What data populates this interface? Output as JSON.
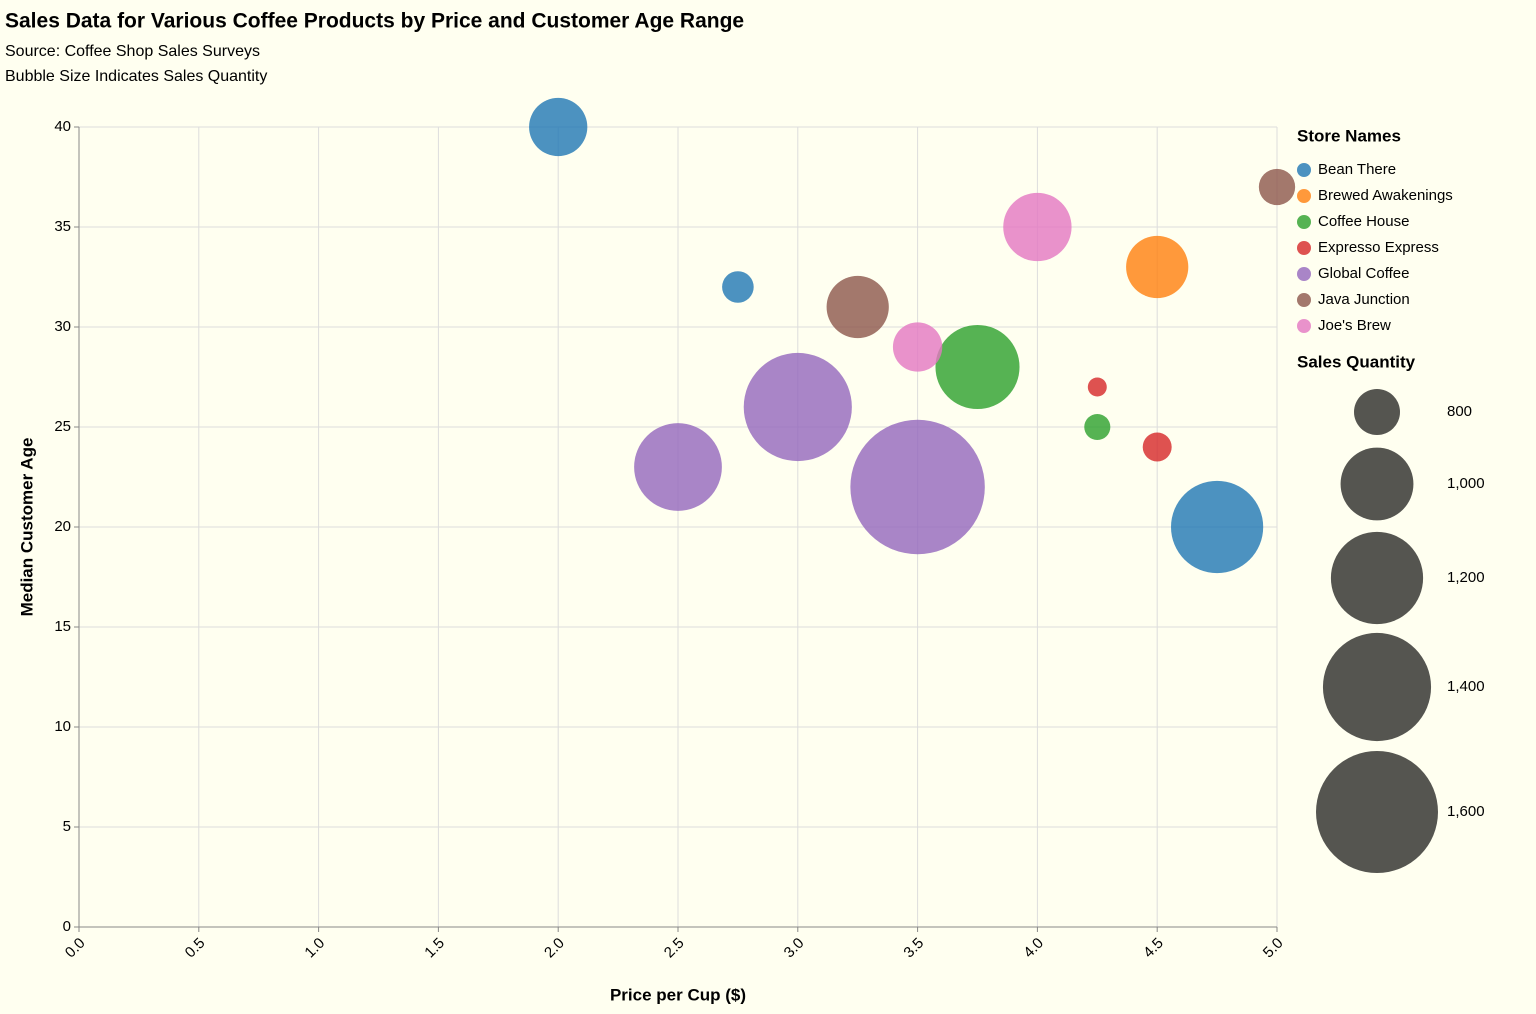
{
  "chart_data": {
    "type": "bubble",
    "title": "Sales Data for Various Coffee Products by Price and Customer Age Range",
    "subtitle": [
      "Source: Coffee Shop Sales Surveys",
      "Bubble Size Indicates Sales Quantity"
    ],
    "x_label": "Price per Cup ($)",
    "y_label": "Median Customer Age",
    "legend_title": "Store Names",
    "size_legend_title": "Sales Quantity",
    "xlim": [
      0,
      5
    ],
    "xticks": [
      {
        "value": 0,
        "label": "0.0"
      },
      {
        "value": 0.5,
        "label": "0.5"
      },
      {
        "value": 1,
        "label": "1.0"
      },
      {
        "value": 1.5,
        "label": "1.5"
      },
      {
        "value": 2,
        "label": "2.0"
      },
      {
        "value": 2.5,
        "label": "2.5"
      },
      {
        "value": 3,
        "label": "3.0"
      },
      {
        "value": 3.5,
        "label": "3.5"
      },
      {
        "value": 4,
        "label": "4.0"
      },
      {
        "value": 4.5,
        "label": "4.5"
      },
      {
        "value": 5,
        "label": "5.0"
      }
    ],
    "ylim": [
      0,
      40
    ],
    "yticks": [
      0,
      5,
      10,
      15,
      20,
      25,
      30,
      35,
      40
    ],
    "grid": true,
    "size_legend": [
      800,
      {
        "value": 1000,
        "label": "1,000"
      },
      {
        "value": 1200,
        "label": "1,200"
      },
      {
        "value": 1400,
        "label": "1,400"
      },
      {
        "value": 1600,
        "label": "1,600"
      }
    ],
    "size_legend_color": "#555550",
    "series": [
      {
        "name": "Bean There",
        "color": "#1f77b4",
        "x": [
          2.0,
          2.75,
          4.75
        ],
        "values": [
          40,
          32,
          20
        ],
        "sizes": [
          880,
          730,
          1200
        ]
      },
      {
        "name": "Brewed Awakenings",
        "color": "#ff7f0e",
        "x": [
          4.5
        ],
        "values": [
          33
        ],
        "sizes": [
          910
        ]
      },
      {
        "name": "Coffee House",
        "color": "#2ca02c",
        "x": [
          3.75,
          4.25
        ],
        "values": [
          28,
          25
        ],
        "sizes": [
          1110,
          710
        ]
      },
      {
        "name": "Expresso Express",
        "color": "#d62728",
        "x": [
          4.25,
          4.5
        ],
        "values": [
          27,
          24
        ],
        "sizes": [
          690,
          720
        ]
      },
      {
        "name": "Global Coffee",
        "color": "#9467bd",
        "x": [
          2.5,
          3.0,
          3.5
        ],
        "values": [
          23,
          26,
          22
        ],
        "sizes": [
          1150,
          1400,
          1800
        ]
      },
      {
        "name": "Java Junction",
        "color": "#8c564b",
        "x": [
          3.25,
          5.0
        ],
        "values": [
          31,
          37
        ],
        "sizes": [
          910,
          750
        ]
      },
      {
        "name": "Joe's Brew",
        "color": "#e377c2",
        "x": [
          4.0,
          3.5
        ],
        "values": [
          35,
          29
        ],
        "sizes": [
          960,
          820
        ]
      }
    ]
  }
}
